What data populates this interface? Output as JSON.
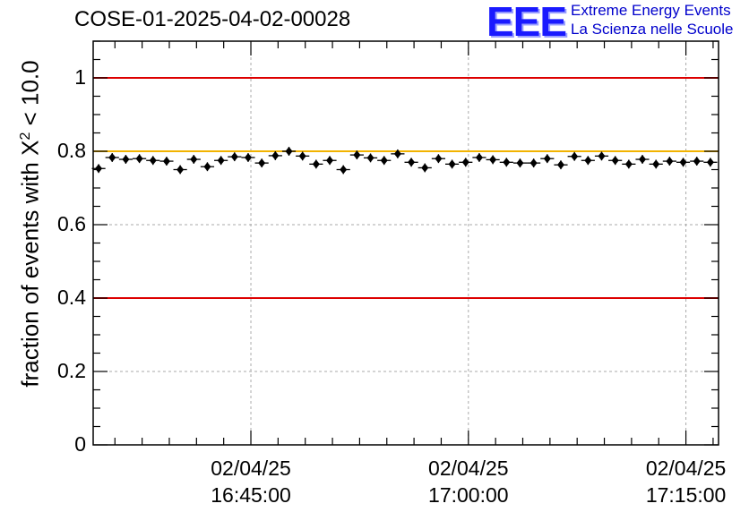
{
  "chart_data": {
    "type": "scatter",
    "title": "COSE-01-2025-04-02-00028",
    "ylabel_main": "fraction of events with X",
    "ylabel_sup": "2",
    "ylabel_tail": " < 10.0",
    "xlabel": "",
    "ylim": [
      0,
      1.1
    ],
    "xlim_minutes": [
      0,
      57.5
    ],
    "grid": true,
    "y_ticks": [
      {
        "value": 0,
        "label": "0"
      },
      {
        "value": 0.2,
        "label": "0.2"
      },
      {
        "value": 0.4,
        "label": "0.4"
      },
      {
        "value": 0.6,
        "label": "0.6"
      },
      {
        "value": 0.8,
        "label": "0.8"
      },
      {
        "value": 1.0,
        "label": "1"
      }
    ],
    "x_ticks": [
      {
        "minutes": 14.5,
        "date": "02/04/25",
        "time": "16:45:00"
      },
      {
        "minutes": 34.5,
        "date": "02/04/25",
        "time": "17:00:00"
      },
      {
        "minutes": 54.5,
        "date": "02/04/25",
        "time": "17:15:00"
      }
    ],
    "reference_lines": [
      {
        "y": 1.0,
        "color": "#dd0000"
      },
      {
        "y": 0.4,
        "color": "#dd0000"
      },
      {
        "y": 0.8,
        "color": "#f2b300"
      }
    ],
    "series": [
      {
        "name": "fraction",
        "x_minutes": [
          0.5,
          1.75,
          3.0,
          4.25,
          5.5,
          6.75,
          8.0,
          9.25,
          10.5,
          11.75,
          13.0,
          14.25,
          15.5,
          16.75,
          18.0,
          19.25,
          20.5,
          21.75,
          23.0,
          24.25,
          25.5,
          26.75,
          28.0,
          29.25,
          30.5,
          31.75,
          33.0,
          34.25,
          35.5,
          36.75,
          38.0,
          39.25,
          40.5,
          41.75,
          43.0,
          44.25,
          45.5,
          46.75,
          48.0,
          49.25,
          50.5,
          51.75,
          53.0,
          54.25,
          55.5,
          56.75
        ],
        "y": [
          0.753,
          0.783,
          0.778,
          0.78,
          0.775,
          0.773,
          0.75,
          0.778,
          0.758,
          0.775,
          0.785,
          0.783,
          0.768,
          0.788,
          0.8,
          0.787,
          0.765,
          0.775,
          0.75,
          0.79,
          0.782,
          0.775,
          0.793,
          0.77,
          0.755,
          0.78,
          0.765,
          0.77,
          0.783,
          0.777,
          0.77,
          0.768,
          0.768,
          0.78,
          0.763,
          0.786,
          0.775,
          0.787,
          0.775,
          0.765,
          0.778,
          0.765,
          0.773,
          0.77,
          0.773,
          0.77
        ],
        "y_err": 0.012
      }
    ]
  },
  "logo": {
    "mark": "EEE",
    "line1": "Extreme Energy Events",
    "line2": "La Scienza nelle Scuole"
  },
  "colors": {
    "marker": "#000000",
    "limit_red": "#dd0000",
    "limit_yellow": "#f2b300",
    "logo_blue": "#1a1aff"
  }
}
